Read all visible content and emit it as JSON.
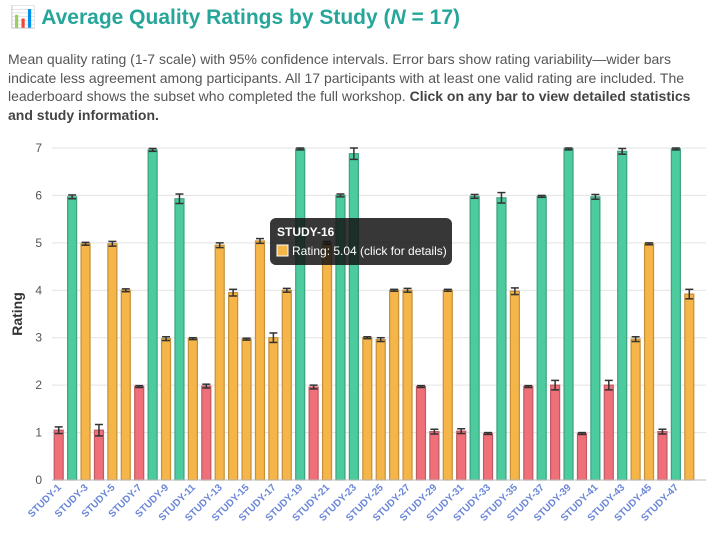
{
  "chart_data": {
    "type": "bar",
    "title": {
      "icon": "📊",
      "before": "Average Quality Ratings by Study (",
      "italic": "N",
      "after": " = 17)"
    },
    "description": {
      "text": "Mean quality rating (1-7 scale) with 95% confidence intervals. Error bars show rating variability—wider bars indicate less agreement among participants. All 17 participants with at least one valid rating are included. The leaderboard shows the subset who completed the full workshop. ",
      "bold": "Click on any bar to view detailed statistics and study information."
    },
    "y_label": "Rating",
    "categories": [
      "STUDY-1",
      null,
      "STUDY-3",
      null,
      "STUDY-5",
      null,
      "STUDY-7",
      null,
      "STUDY-9",
      null,
      "STUDY-11",
      null,
      "STUDY-13",
      null,
      "STUDY-15",
      null,
      "STUDY-17",
      null,
      "STUDY-19",
      null,
      "STUDY-21",
      null,
      "STUDY-23",
      null,
      "STUDY-25",
      null,
      "STUDY-27",
      null,
      "STUDY-29",
      null,
      "STUDY-31",
      null,
      "STUDY-33",
      null,
      "STUDY-35",
      null,
      "STUDY-37",
      null,
      "STUDY-39",
      null,
      "STUDY-41",
      null,
      "STUDY-43",
      null,
      "STUDY-45",
      null,
      "STUDY-47",
      null
    ],
    "values": [
      1.05,
      5.97,
      4.98,
      1.05,
      4.98,
      4.0,
      1.97,
      6.96,
      2.98,
      5.93,
      2.98,
      1.98,
      4.95,
      3.95,
      2.97,
      5.04,
      3.0,
      4.0,
      6.98,
      1.96,
      5.0,
      6.0,
      6.88,
      3.0,
      2.96,
      4.0,
      4.0,
      1.97,
      1.02,
      4.0,
      1.03,
      5.98,
      0.98,
      5.95,
      3.98,
      1.97,
      5.98,
      2.0,
      6.98,
      0.98,
      5.97,
      2.0,
      6.93,
      2.97,
      4.98,
      1.02,
      6.98,
      3.92
    ],
    "errors": [
      0.07,
      0.04,
      0.03,
      0.12,
      0.05,
      0.03,
      0.02,
      0.03,
      0.04,
      0.1,
      0.02,
      0.04,
      0.05,
      0.07,
      0.02,
      0.05,
      0.1,
      0.04,
      0.02,
      0.04,
      0.03,
      0.03,
      0.12,
      0.02,
      0.04,
      0.02,
      0.04,
      0.02,
      0.05,
      0.02,
      0.05,
      0.04,
      0.02,
      0.11,
      0.07,
      0.02,
      0.02,
      0.1,
      0.02,
      0.02,
      0.05,
      0.1,
      0.06,
      0.05,
      0.02,
      0.05,
      0.02,
      0.1
    ],
    "colors": [
      "#f0707a",
      "#4ccb9e",
      "#f5b548",
      "#f0707a",
      "#f5b548",
      "#f5b548",
      "#f0707a",
      "#4ccb9e",
      "#f5b548",
      "#4ccb9e",
      "#f5b548",
      "#f0707a",
      "#f5b548",
      "#f5b548",
      "#f5b548",
      "#f5b548",
      "#f5b548",
      "#f5b548",
      "#4ccb9e",
      "#f0707a",
      "#f5b548",
      "#4ccb9e",
      "#4ccb9e",
      "#f5b548",
      "#f5b548",
      "#f5b548",
      "#f5b548",
      "#f0707a",
      "#f0707a",
      "#f5b548",
      "#f0707a",
      "#4ccb9e",
      "#f0707a",
      "#4ccb9e",
      "#f5b548",
      "#f0707a",
      "#4ccb9e",
      "#f0707a",
      "#4ccb9e",
      "#f0707a",
      "#4ccb9e",
      "#f0707a",
      "#4ccb9e",
      "#f5b548",
      "#f5b548",
      "#f0707a",
      "#4ccb9e",
      "#f5b548"
    ],
    "ylim": [
      0,
      7
    ],
    "yticks": [
      0,
      1,
      2,
      3,
      4,
      5,
      6,
      7
    ],
    "grid": true,
    "tooltip": {
      "title": "STUDY-16",
      "text": "Rating: 5.04 (click for details)"
    }
  }
}
